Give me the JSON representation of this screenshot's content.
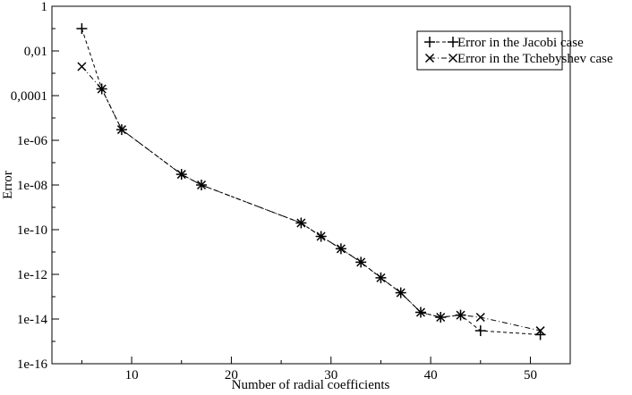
{
  "chart_data": {
    "type": "line",
    "xlabel": "Number of radial coefficients",
    "ylabel": "Error",
    "yscale": "log",
    "xlim": [
      2,
      54
    ],
    "ylim": [
      1e-16,
      1
    ],
    "x_ticks": [
      10,
      20,
      30,
      40,
      50
    ],
    "x_tick_labels": [
      "10",
      "20",
      "30",
      "40",
      "50"
    ],
    "y_ticks": [
      1,
      0.01,
      0.0001,
      1e-06,
      1e-08,
      1e-10,
      1e-12,
      1e-14,
      1e-16
    ],
    "y_tick_labels": [
      "1",
      "0,01",
      "0,0001",
      "1e-06",
      "1e-08",
      "1e-10",
      "1e-12",
      "1e-14",
      "1e-16"
    ],
    "grid": false,
    "legend_position": "top-right",
    "series": [
      {
        "name": "Error in the Jacobi case",
        "marker": "plus",
        "dash": "dashed",
        "x": [
          5,
          7,
          9,
          15,
          17,
          27,
          29,
          31,
          33,
          35,
          37,
          39,
          41,
          43,
          45,
          51
        ],
        "y": [
          0.1,
          0.0002,
          3e-06,
          3e-08,
          1e-08,
          2e-10,
          5e-11,
          1.4e-11,
          3.5e-12,
          7e-13,
          1.5e-13,
          2e-14,
          1.2e-14,
          1.5e-14,
          3e-15,
          2e-15
        ]
      },
      {
        "name": "Error in the Tchebyshev case",
        "marker": "cross",
        "dash": "dashdot",
        "x": [
          5,
          7,
          9,
          15,
          17,
          27,
          29,
          31,
          33,
          35,
          37,
          39,
          41,
          43,
          45,
          51
        ],
        "y": [
          0.002,
          0.0002,
          3e-06,
          3e-08,
          1e-08,
          2e-10,
          5e-11,
          1.4e-11,
          3.5e-12,
          7e-13,
          1.5e-13,
          2e-14,
          1.2e-14,
          1.5e-14,
          1.2e-14,
          3e-15
        ]
      }
    ]
  }
}
